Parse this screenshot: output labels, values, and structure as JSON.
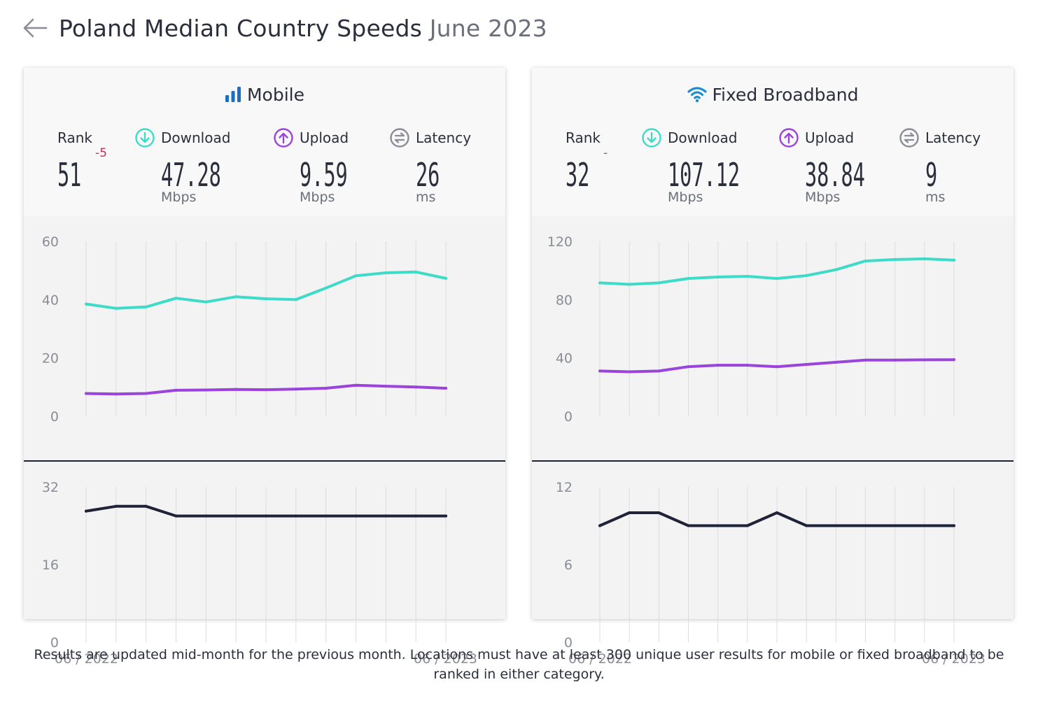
{
  "header": {
    "title": "Poland Median Country Speeds",
    "date": "June 2023"
  },
  "footer": {
    "note": "Results are updated mid-month for the previous month. Locations must have at least 300 unique user results for mobile or fixed broadband to be ranked in either category."
  },
  "colors": {
    "download": "#3ddbc8",
    "upload": "#9a44dc",
    "latency": "#1f2338",
    "mobile_icon": "#1b6fc0",
    "fixed_icon": "#1a8fd1",
    "rank_change": "#c0334f"
  },
  "icons": {
    "back": "arrow-left-icon",
    "mobile": "signal-bars-icon",
    "fixed": "wifi-icon",
    "download": "arrow-down-circle-icon",
    "upload": "arrow-up-circle-icon",
    "latency": "latency-circle-icon"
  },
  "panels": {
    "mobile": {
      "title": "Mobile",
      "rank": {
        "label": "Rank",
        "value": "51",
        "change": "-5"
      },
      "download": {
        "label": "Download",
        "value": "47.28",
        "unit": "Mbps"
      },
      "upload": {
        "label": "Upload",
        "value": "9.59",
        "unit": "Mbps"
      },
      "latency": {
        "label": "Latency",
        "value": "26",
        "unit": "ms"
      }
    },
    "fixed": {
      "title": "Fixed Broadband",
      "rank": {
        "label": "Rank",
        "value": "32",
        "change": "-"
      },
      "download": {
        "label": "Download",
        "value": "107.12",
        "unit": "Mbps"
      },
      "upload": {
        "label": "Upload",
        "value": "38.84",
        "unit": "Mbps"
      },
      "latency": {
        "label": "Latency",
        "value": "9",
        "unit": "ms"
      }
    }
  },
  "chart_data": [
    {
      "type": "line",
      "panel": "mobile",
      "x": [
        "06 / 2022",
        "07 / 2022",
        "08 / 2022",
        "09 / 2022",
        "10 / 2022",
        "11 / 2022",
        "12 / 2022",
        "01 / 2023",
        "02 / 2023",
        "03 / 2023",
        "04 / 2023",
        "05 / 2023",
        "06 / 2023"
      ],
      "x_tick_labels": [
        "06 / 2022",
        "06 / 2023"
      ],
      "speed": {
        "ylim": [
          0,
          60
        ],
        "yticks": [
          "60",
          "40",
          "20",
          "0"
        ],
        "grid": "vertical",
        "series": [
          {
            "key": "download",
            "values": [
              38.5,
              37.0,
              37.5,
              40.5,
              39.2,
              41.0,
              40.3,
              40.0,
              44.0,
              48.2,
              49.2,
              49.5,
              47.3
            ]
          },
          {
            "key": "upload",
            "values": [
              7.8,
              7.6,
              7.8,
              8.9,
              9.0,
              9.2,
              9.1,
              9.3,
              9.6,
              10.6,
              10.3,
              10.0,
              9.6
            ]
          }
        ]
      },
      "latency": {
        "ylim": [
          0,
          32
        ],
        "yticks": [
          "32",
          "16",
          "0"
        ],
        "grid": "vertical",
        "series": [
          {
            "key": "latency",
            "values": [
              27,
              28,
              28,
              26,
              26,
              26,
              26,
              26,
              26,
              26,
              26,
              26,
              26
            ]
          }
        ]
      }
    },
    {
      "type": "line",
      "panel": "fixed",
      "x": [
        "06 / 2022",
        "07 / 2022",
        "08 / 2022",
        "09 / 2022",
        "10 / 2022",
        "11 / 2022",
        "12 / 2022",
        "01 / 2023",
        "02 / 2023",
        "03 / 2023",
        "04 / 2023",
        "05 / 2023",
        "06 / 2023"
      ],
      "x_tick_labels": [
        "06 / 2022",
        "06 / 2023"
      ],
      "speed": {
        "ylim": [
          0,
          120
        ],
        "yticks": [
          "120",
          "80",
          "40",
          "0"
        ],
        "grid": "vertical",
        "series": [
          {
            "key": "download",
            "values": [
              91.5,
              90.5,
              91.5,
              94.5,
              95.5,
              96.0,
              94.5,
              96.5,
              100.5,
              106.5,
              107.5,
              108.0,
              107.1
            ]
          },
          {
            "key": "upload",
            "values": [
              31.0,
              30.5,
              31.0,
              34.0,
              35.0,
              35.0,
              34.0,
              35.5,
              37.0,
              38.5,
              38.5,
              38.7,
              38.8
            ]
          }
        ]
      },
      "latency": {
        "ylim": [
          0,
          12
        ],
        "yticks": [
          "12",
          "6",
          "0"
        ],
        "grid": "vertical",
        "series": [
          {
            "key": "latency",
            "values": [
              9,
              10,
              10,
              9,
              9,
              9,
              10,
              9,
              9,
              9,
              9,
              9,
              9
            ]
          }
        ]
      }
    }
  ]
}
